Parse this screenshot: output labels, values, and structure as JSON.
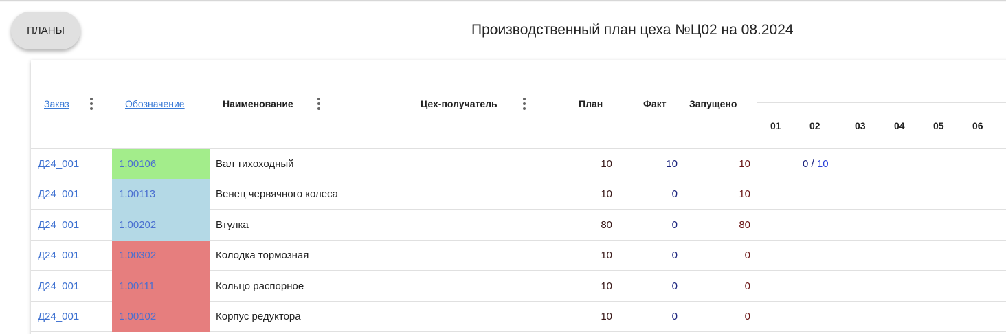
{
  "header": {
    "plans_button": "ПЛАНЫ",
    "title": "Производственный план цеха №Ц02 на 08.2024"
  },
  "colors": {
    "green": "#a3ed8b",
    "blue": "#b4d9e6",
    "red": "#e67e7e",
    "link": "#3b7bd6"
  },
  "columns": {
    "order": "Заказ",
    "code": "Обозначение",
    "name": "Наименование",
    "receiver": "Цех-получатель",
    "plan": "План",
    "fact": "Факт",
    "launched": "Запущено",
    "days": [
      "01",
      "02",
      "03",
      "04",
      "05",
      "06"
    ]
  },
  "rows": [
    {
      "order": "Д24_001",
      "code": "1.00106",
      "status": "green",
      "name": "Вал тихоходный",
      "plan": "10",
      "fact": "10",
      "launched": "10",
      "day02_done": "0",
      "day02_sep": " / ",
      "day02_plan": "10"
    },
    {
      "order": "Д24_001",
      "code": "1.00113",
      "status": "blue",
      "name": "Венец червячного колеса",
      "plan": "10",
      "fact": "0",
      "launched": "10"
    },
    {
      "order": "Д24_001",
      "code": "1.00202",
      "status": "blue",
      "name": "Втулка",
      "plan": "80",
      "fact": "0",
      "launched": "80"
    },
    {
      "order": "Д24_001",
      "code": "1.00302",
      "status": "red",
      "name": "Колодка тормозная",
      "plan": "10",
      "fact": "0",
      "launched": "0"
    },
    {
      "order": "Д24_001",
      "code": "1.00111",
      "status": "red",
      "name": "Кольцо распорное",
      "plan": "10",
      "fact": "0",
      "launched": "0"
    },
    {
      "order": "Д24_001",
      "code": "1.00102",
      "status": "red",
      "name": "Корпус редуктора",
      "plan": "10",
      "fact": "0",
      "launched": "0"
    }
  ]
}
